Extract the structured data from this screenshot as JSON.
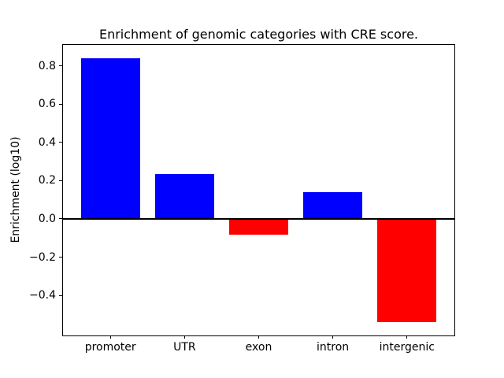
{
  "chart_data": {
    "type": "bar",
    "title": "Enrichment of genomic categories with CRE score.",
    "xlabel": "",
    "ylabel": "Enrichment (log10)",
    "categories": [
      "promoter",
      "UTR",
      "exon",
      "intron",
      "intergenic"
    ],
    "values": [
      0.84,
      0.235,
      -0.085,
      0.14,
      -0.54
    ],
    "bar_colors": [
      "#0000ff",
      "#0000ff",
      "#ff0000",
      "#0000ff",
      "#ff0000"
    ],
    "colors": {
      "positive": "#0000ff",
      "negative": "#ff0000",
      "axis": "#000000",
      "background": "#ffffff"
    },
    "yticks": [
      0.8,
      0.6,
      0.4,
      0.2,
      0.0,
      -0.2,
      -0.4
    ],
    "ytick_labels": [
      "0.8",
      "0.6",
      "0.4",
      "0.2",
      "0.0",
      "−0.2",
      "−0.4"
    ],
    "ylim": [
      -0.61,
      0.91
    ],
    "xlim": [
      -0.64,
      4.64
    ],
    "bar_width_fraction": 0.8,
    "zero_line": true,
    "grid": false,
    "legend": null
  }
}
